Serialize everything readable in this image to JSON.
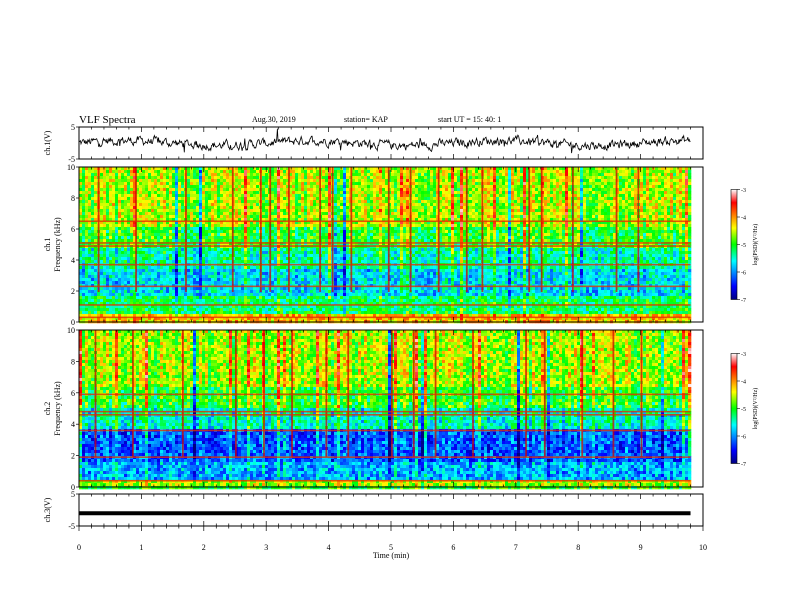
{
  "header": {
    "title": "VLF Spectra",
    "date": "Aug.30, 2019",
    "station": "station= KAP",
    "start_ut": "start  UT =   15: 40: 1"
  },
  "chart_data": [
    {
      "type": "line",
      "panel": "ch1-waveform",
      "ylabel": "ch.1(V)",
      "yticks": [
        "5",
        "-5"
      ],
      "ylim": [
        -5,
        5
      ],
      "xlim": [
        0,
        10
      ],
      "series": [
        {
          "values": "noisy trace around 0 V, amplitude about ±2.5 V, ending near 9.8 min"
        }
      ]
    },
    {
      "type": "heatmap",
      "panel": "ch1-spectrogram",
      "ylabel": "ch.1\nFrequency (kHz)",
      "yticks": [
        "0",
        "2",
        "4",
        "6",
        "8",
        "10"
      ],
      "ylim": [
        0,
        10
      ],
      "xlim": [
        0,
        10
      ],
      "data_end_min": 9.8,
      "colorbar": {
        "label": "log(PSD)(V²/Hz)",
        "ticks": [
          "-3",
          "-4",
          "-5",
          "-6",
          "-7"
        ],
        "range": [
          -7,
          -3
        ],
        "colormap": "jet"
      },
      "bands": [
        {
          "freq_khz": [
            0,
            0.6
          ],
          "level": -4.2
        },
        {
          "freq_khz": [
            0.6,
            1.6
          ],
          "level": -5.2
        },
        {
          "freq_khz": [
            1.6,
            3.4
          ],
          "level": -5.7
        },
        {
          "freq_khz": [
            3.4,
            4.8
          ],
          "level": -5.4
        },
        {
          "freq_khz": [
            4.8,
            6.2
          ],
          "level": -5.0
        },
        {
          "freq_khz": [
            6.2,
            10
          ],
          "level": -4.6
        }
      ],
      "lines_khz": [
        0.3,
        1.1,
        2.3,
        3.7,
        4.9,
        5.1,
        6.5
      ],
      "vertical_events_min": [
        0.3,
        0.9,
        1.7,
        2.45,
        2.9,
        3.05,
        3.35,
        3.85,
        4.05,
        4.35,
        4.95,
        5.3,
        5.75,
        6.2,
        6.45,
        7.2,
        7.4,
        7.9,
        8.6,
        8.95
      ]
    },
    {
      "type": "heatmap",
      "panel": "ch2-spectrogram",
      "ylabel": "ch.2\nFrequency (kHz)",
      "yticks": [
        "0",
        "2",
        "4",
        "6",
        "8",
        "10"
      ],
      "ylim": [
        0,
        10
      ],
      "xlim": [
        0,
        10
      ],
      "data_end_min": 9.8,
      "colorbar": {
        "label": "log(PSD)(V²/Hz)",
        "ticks": [
          "-3",
          "-4",
          "-5",
          "-6",
          "-7"
        ],
        "range": [
          -7,
          -3
        ],
        "colormap": "jet"
      },
      "bands": [
        {
          "freq_khz": [
            0,
            0.5
          ],
          "level": -4.6
        },
        {
          "freq_khz": [
            0.5,
            1.6
          ],
          "level": -5.9
        },
        {
          "freq_khz": [
            1.6,
            3.6
          ],
          "level": -6.2
        },
        {
          "freq_khz": [
            3.6,
            5.0
          ],
          "level": -5.5
        },
        {
          "freq_khz": [
            5.0,
            6.4
          ],
          "level": -5.0
        },
        {
          "freq_khz": [
            6.4,
            10
          ],
          "level": -4.6
        }
      ],
      "lines_khz": [
        0.4,
        1.9,
        3.6,
        4.6,
        4.8,
        5.9
      ],
      "vertical_events_min": [
        0.25,
        0.85,
        1.65,
        2.5,
        2.95,
        3.4,
        3.95,
        4.3,
        5.0,
        5.35,
        5.7,
        6.3,
        7.15,
        7.45,
        8.05,
        8.55,
        9.0
      ]
    },
    {
      "type": "line",
      "panel": "ch3-waveform",
      "ylabel": "ch.3(V)",
      "yticks": [
        "5",
        "-5"
      ],
      "ylim": [
        -5,
        5
      ],
      "xlim": [
        0,
        10
      ],
      "xlabel": "Time  (min)",
      "xticks": [
        "0",
        "1",
        "2",
        "3",
        "4",
        "5",
        "6",
        "7",
        "8",
        "9",
        "10"
      ],
      "series": [
        {
          "values": "thick flat trace near -1 V from 0 to 9.8 min"
        }
      ]
    }
  ]
}
